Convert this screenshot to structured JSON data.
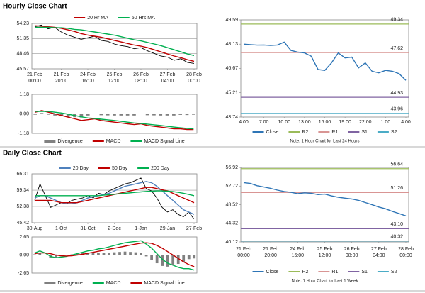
{
  "headers": [
    "Hourly Close Chart",
    "Daily Close Chart"
  ],
  "chart_data": [
    {
      "type": "line",
      "legend": "top",
      "grid": true,
      "ylim": [
        45.57,
        54.23
      ],
      "yticks": [
        54.23,
        51.35,
        48.46,
        45.57
      ],
      "categories": [
        [
          "21 Feb",
          "00:00"
        ],
        null,
        null,
        null,
        [
          "21 Feb",
          "20:00"
        ],
        null,
        null,
        null,
        [
          "24 Feb",
          "16:00"
        ],
        null,
        null,
        null,
        [
          "25 Feb",
          "12:00"
        ],
        null,
        null,
        null,
        [
          "26 Feb",
          "08:00"
        ],
        null,
        null,
        null,
        [
          "27 Feb",
          "04:00"
        ],
        null,
        null,
        null,
        [
          "28 Feb",
          "00:00"
        ]
      ],
      "series": [
        {
          "color": "#000000",
          "values": [
            53.6,
            53.9,
            53.2,
            53.5,
            52.6,
            52.0,
            51.6,
            51.2,
            51.5,
            51.8,
            51.0,
            50.8,
            50.3,
            50.0,
            49.8,
            49.4,
            49.6,
            49.0,
            48.5,
            48.0,
            47.8,
            47.2,
            47.5,
            46.8,
            46.6
          ]
        },
        {
          "name": "20 Hr MA",
          "color": "#c00000",
          "values": [
            53.8,
            53.7,
            53.6,
            53.5,
            53.3,
            53.0,
            52.7,
            52.3,
            52.0,
            51.8,
            51.6,
            51.3,
            51.0,
            50.7,
            50.4,
            50.1,
            49.9,
            49.6,
            49.2,
            48.8,
            48.4,
            48.0,
            47.7,
            47.3,
            47.0
          ]
        },
        {
          "name": "50 Hrs MA",
          "color": "#00b050",
          "values": [
            53.5,
            53.5,
            53.5,
            53.4,
            53.4,
            53.3,
            53.1,
            53.0,
            52.8,
            52.6,
            52.4,
            52.2,
            52.0,
            51.7,
            51.4,
            51.1,
            50.9,
            50.6,
            50.3,
            50.0,
            49.6,
            49.2,
            48.8,
            48.4,
            48.1
          ]
        }
      ]
    },
    {
      "type": "line",
      "legend": "bottom",
      "grid": true,
      "ylim": [
        -1.18,
        1.18
      ],
      "yticks": [
        1.18,
        {
          "value": 0,
          "label": "0.00"
        },
        -1.18
      ],
      "series": [
        {
          "name": "Divergence",
          "type": "bar",
          "color": "#808080",
          "values": [
            -0.05,
            0.05,
            -0.05,
            -0.1,
            -0.15,
            -0.18,
            -0.2,
            -0.22,
            -0.1,
            -0.02,
            -0.08,
            -0.09,
            -0.1,
            -0.1,
            -0.1,
            -0.1,
            -0.02,
            -0.08,
            -0.09,
            -0.1,
            -0.1,
            -0.1,
            -0.06,
            -0.07,
            -0.05
          ]
        },
        {
          "name": "MACD",
          "color": "#c00000",
          "values": [
            0.1,
            0.2,
            0.1,
            0.0,
            -0.1,
            -0.2,
            -0.3,
            -0.4,
            -0.35,
            -0.3,
            -0.4,
            -0.45,
            -0.5,
            -0.55,
            -0.6,
            -0.65,
            -0.6,
            -0.7,
            -0.75,
            -0.8,
            -0.85,
            -0.9,
            -0.9,
            -0.95,
            -0.95
          ]
        },
        {
          "name": "MACD Signal Line",
          "color": "#00b050",
          "values": [
            0.15,
            0.15,
            0.15,
            0.1,
            0.05,
            -0.02,
            -0.1,
            -0.18,
            -0.25,
            -0.28,
            -0.32,
            -0.36,
            -0.4,
            -0.45,
            -0.5,
            -0.55,
            -0.58,
            -0.62,
            -0.66,
            -0.7,
            -0.75,
            -0.8,
            -0.84,
            -0.88,
            -0.9
          ]
        }
      ]
    },
    {
      "type": "line",
      "legend": "bottom",
      "grid": false,
      "note": "Note: 1 Hour Chart for Last 24 Hours",
      "ylim": [
        43.74,
        49.59
      ],
      "yticks": [
        49.59,
        48.13,
        46.67,
        45.21,
        43.74
      ],
      "categories": [
        "4:00",
        null,
        null,
        "7:00",
        null,
        null,
        "10:00",
        null,
        null,
        "13:00",
        null,
        null,
        "16:00",
        null,
        null,
        "19:00",
        null,
        null,
        "22:00",
        null,
        null,
        "1:00",
        null,
        null,
        "4:00"
      ],
      "series": [
        {
          "name": "Close",
          "color": "#2e75b6",
          "values": [
            48.13,
            48.1,
            48.07,
            48.08,
            48.05,
            48.08,
            48.25,
            47.75,
            47.65,
            47.6,
            47.4,
            46.6,
            46.55,
            47.0,
            47.6,
            47.3,
            47.35,
            46.7,
            47.0,
            46.5,
            46.4,
            46.55,
            46.5,
            46.35,
            45.95
          ]
        }
      ],
      "levels": [
        {
          "name": "R2",
          "value": 49.34,
          "color": "#9bbb59"
        },
        {
          "name": "R1",
          "value": 47.62,
          "color": "#d99594"
        },
        {
          "name": "S1",
          "value": 44.93,
          "color": "#8064a2"
        },
        {
          "name": "S2",
          "value": 43.96,
          "color": "#4bacc6"
        }
      ]
    },
    {
      "type": "line",
      "legend": "top",
      "grid": true,
      "ylim": [
        45.42,
        66.31
      ],
      "yticks": [
        66.31,
        59.34,
        52.38,
        45.42
      ],
      "categories": [
        "30-Aug",
        null,
        null,
        null,
        null,
        "1-Oct",
        null,
        null,
        null,
        null,
        "31-Oct",
        null,
        null,
        null,
        null,
        "2-Dec",
        null,
        null,
        null,
        null,
        "1-Jan",
        null,
        null,
        null,
        null,
        "29-Jan",
        null,
        null,
        null,
        null,
        "27-Feb"
      ],
      "series": [
        {
          "color": "#000000",
          "values": [
            55,
            62,
            57,
            52,
            53,
            54,
            53.5,
            55,
            55.5,
            56,
            57,
            56,
            58,
            57.5,
            59,
            60,
            61,
            62,
            62.5,
            63.5,
            64.5,
            60,
            59,
            56,
            52,
            50,
            51,
            49,
            48,
            50,
            47
          ]
        },
        {
          "name": "20 Day",
          "color": "#4f81bd",
          "values": [
            56,
            57,
            57,
            56,
            55,
            54,
            53.5,
            53.5,
            54,
            55,
            56,
            56.5,
            57,
            57.5,
            58,
            59,
            60,
            61,
            61.5,
            62,
            62.5,
            63,
            62.5,
            61,
            59,
            57,
            55,
            53,
            51,
            50,
            49
          ]
        },
        {
          "name": "50 Day",
          "color": "#c00000",
          "values": [
            55,
            55,
            55,
            55,
            54.5,
            54,
            54,
            54,
            54,
            54.5,
            55,
            55.5,
            56,
            56.5,
            57,
            57.5,
            58,
            58.5,
            59,
            59.5,
            60,
            60.5,
            60.5,
            60,
            59.5,
            59,
            58,
            57,
            56,
            55,
            54
          ]
        },
        {
          "name": "200 Day",
          "color": "#00b050",
          "values": [
            57,
            57,
            57,
            57,
            57,
            57,
            57,
            57,
            57,
            57,
            57,
            57,
            57,
            57.2,
            57.4,
            57.6,
            57.8,
            58,
            58.2,
            58.4,
            58.6,
            58.8,
            58.9,
            59,
            59,
            58.9,
            58.7,
            58.4,
            58,
            57.5,
            57
          ]
        }
      ]
    },
    {
      "type": "line",
      "legend": "bottom",
      "grid": true,
      "ylim": [
        -2.65,
        2.65
      ],
      "yticks": [
        2.65,
        {
          "value": 0,
          "label": "0.00"
        },
        -2.65
      ],
      "series": [
        {
          "name": "Divergence",
          "type": "bar",
          "color": "#808080",
          "values": [
            0.1,
            0.3,
            0,
            -0.4,
            -0.4,
            -0.2,
            -0.05,
            0.1,
            0.2,
            0.3,
            0.35,
            0.3,
            0.35,
            0.3,
            0.35,
            0.4,
            0.45,
            0.5,
            0.45,
            0.4,
            0.35,
            -0.2,
            -0.7,
            -1.2,
            -1.6,
            -1.7,
            -1.5,
            -1.3,
            -1.0,
            -0.6,
            -0.5
          ]
        },
        {
          "name": "MACD",
          "color": "#00b050",
          "values": [
            0.3,
            0.6,
            0.3,
            -0.2,
            -0.4,
            -0.3,
            -0.2,
            0,
            0.2,
            0.4,
            0.6,
            0.7,
            0.9,
            1.0,
            1.2,
            1.4,
            1.6,
            1.8,
            1.9,
            2.0,
            2.1,
            1.6,
            1.0,
            0.2,
            -0.6,
            -1.2,
            -1.5,
            -1.8,
            -2.0,
            -2.0,
            -2.2
          ]
        },
        {
          "name": "MACD Signal Line",
          "color": "#c00000",
          "values": [
            0.2,
            0.3,
            0.3,
            0.2,
            0,
            -0.1,
            -0.15,
            -0.1,
            0,
            0.1,
            0.25,
            0.4,
            0.55,
            0.7,
            0.85,
            1.0,
            1.15,
            1.3,
            1.45,
            1.6,
            1.75,
            1.8,
            1.7,
            1.4,
            1.0,
            0.5,
            0,
            -0.5,
            -1.0,
            -1.4,
            -1.7
          ]
        }
      ]
    },
    {
      "type": "line",
      "legend": "bottom",
      "grid": false,
      "note": "Note: 1 Hour Chart for Last 1 Week",
      "ylim": [
        40.12,
        56.92
      ],
      "yticks": [
        56.92,
        52.72,
        48.52,
        44.32,
        40.12
      ],
      "categories": [
        [
          "21 Feb",
          "00:00"
        ],
        null,
        null,
        null,
        [
          "21 Feb",
          "20:00"
        ],
        null,
        null,
        null,
        [
          "24 Feb",
          "16:00"
        ],
        null,
        null,
        null,
        [
          "25 Feb",
          "12:00"
        ],
        null,
        null,
        null,
        [
          "26 Feb",
          "08:00"
        ],
        null,
        null,
        null,
        [
          "27 Feb",
          "04:00"
        ],
        null,
        null,
        null,
        [
          "28 Feb",
          "00:00"
        ]
      ],
      "series": [
        {
          "name": "Close",
          "color": "#2e75b6",
          "values": [
            53.5,
            53.3,
            52.8,
            52.5,
            52.2,
            51.8,
            51.5,
            51.3,
            51.0,
            51.2,
            51.1,
            50.8,
            50.9,
            50.5,
            50.2,
            50.0,
            49.8,
            49.5,
            49.0,
            48.5,
            48.0,
            47.6,
            47.0,
            46.5,
            46.0
          ]
        }
      ],
      "levels": [
        {
          "name": "R2",
          "value": 56.64,
          "color": "#9bbb59"
        },
        {
          "name": "R1",
          "value": 51.26,
          "color": "#d99594"
        },
        {
          "name": "S1",
          "value": 43.1,
          "label": "43.10",
          "color": "#8064a2"
        },
        {
          "name": "S2",
          "value": 40.32,
          "color": "#4bacc6"
        }
      ]
    }
  ]
}
